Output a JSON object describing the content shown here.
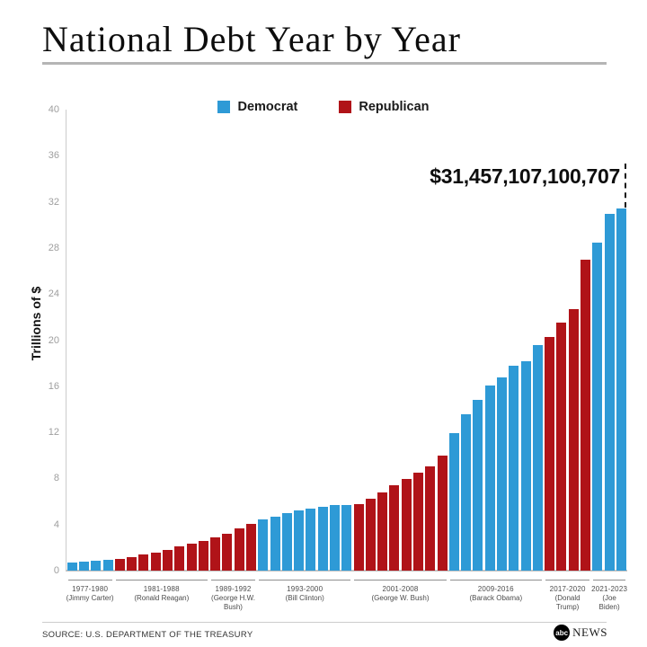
{
  "header": {
    "title": "National Debt Year by Year"
  },
  "footer": {
    "source": "SOURCE: U.S. DEPARTMENT OF THE TREASURY",
    "logo_abc": "abc",
    "logo_news": "NEWS"
  },
  "chart_data": {
    "type": "bar",
    "title": "National Debt Year by Year",
    "xlabel": "",
    "ylabel": "Trillions of $",
    "ylim": [
      0,
      40
    ],
    "yticks": [
      0,
      4,
      8,
      12,
      16,
      20,
      24,
      28,
      32,
      36,
      40
    ],
    "grid": false,
    "legend_position": "top",
    "unit": "trillions of US dollars, by fiscal year",
    "legend": [
      "Democrat",
      "Republican"
    ],
    "party_colors": {
      "Democrat": "#2E9AD6",
      "Republican": "#B01318"
    },
    "annotation": {
      "text": "$31,457,107,100,707",
      "year": 2023
    },
    "groups": [
      {
        "years": "1977-1980",
        "president": "Jimmy Carter",
        "name_lines": [
          "(Jimmy Carter)"
        ],
        "party": "Democrat",
        "start_year": 1977,
        "values": [
          0.7,
          0.77,
          0.83,
          0.91
        ]
      },
      {
        "years": "1981-1988",
        "president": "Ronald Reagan",
        "name_lines": [
          "(Ronald Reagan)"
        ],
        "party": "Republican",
        "start_year": 1981,
        "values": [
          1.0,
          1.14,
          1.38,
          1.57,
          1.82,
          2.13,
          2.35,
          2.6
        ]
      },
      {
        "years": "1989-1992",
        "president": "George H.W. Bush",
        "name_lines": [
          "(George H.W.",
          "Bush)"
        ],
        "party": "Republican",
        "start_year": 1989,
        "values": [
          2.86,
          3.23,
          3.67,
          4.06
        ]
      },
      {
        "years": "1993-2000",
        "president": "Bill Clinton",
        "name_lines": [
          "(Bill Clinton)"
        ],
        "party": "Democrat",
        "start_year": 1993,
        "values": [
          4.41,
          4.69,
          4.97,
          5.22,
          5.41,
          5.53,
          5.66,
          5.67
        ]
      },
      {
        "years": "2001-2008",
        "president": "George W. Bush",
        "name_lines": [
          "(George W. Bush)"
        ],
        "party": "Republican",
        "start_year": 2001,
        "values": [
          5.81,
          6.23,
          6.78,
          7.38,
          7.93,
          8.51,
          9.01,
          10.02
        ]
      },
      {
        "years": "2009-2016",
        "president": "Barack Obama",
        "name_lines": [
          "(Barack Obama)"
        ],
        "party": "Democrat",
        "start_year": 2009,
        "values": [
          11.91,
          13.56,
          14.79,
          16.07,
          16.74,
          17.82,
          18.15,
          19.57
        ]
      },
      {
        "years": "2017-2020",
        "president": "Donald Trump",
        "name_lines": [
          "(Donald",
          "Trump)"
        ],
        "party": "Republican",
        "start_year": 2017,
        "values": [
          20.24,
          21.52,
          22.72,
          26.95
        ]
      },
      {
        "years": "2021-2023",
        "president": "Joe Biden",
        "name_lines": [
          "(Joe",
          "Biden)"
        ],
        "party": "Democrat",
        "start_year": 2021,
        "values": [
          28.43,
          30.93,
          31.46
        ]
      }
    ]
  }
}
